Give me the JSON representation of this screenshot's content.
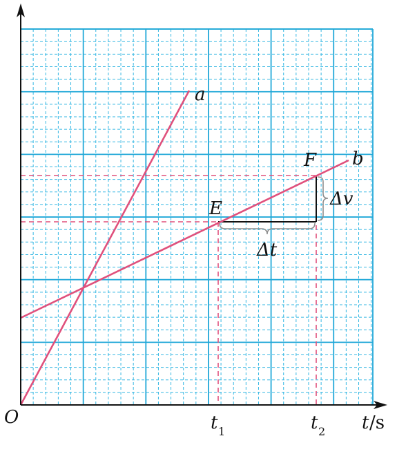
{
  "diagram": {
    "colors": {
      "grid_major": "#21a8d8",
      "grid_minor": "#35b7e3",
      "line": "#e0507c",
      "dashed": "#e0507c",
      "axis": "#111111",
      "brace": "#8e8e8e"
    },
    "labels": {
      "origin": "O",
      "line_a": "a",
      "line_b": "b",
      "point_E": "E",
      "point_F": "F",
      "delta_v": "Δv",
      "delta_t": "Δt",
      "t1": "t",
      "t1_sub": "1",
      "t2": "t",
      "t2_sub": "2",
      "axis_t": "t",
      "axis_t_unit": "/s"
    }
  }
}
